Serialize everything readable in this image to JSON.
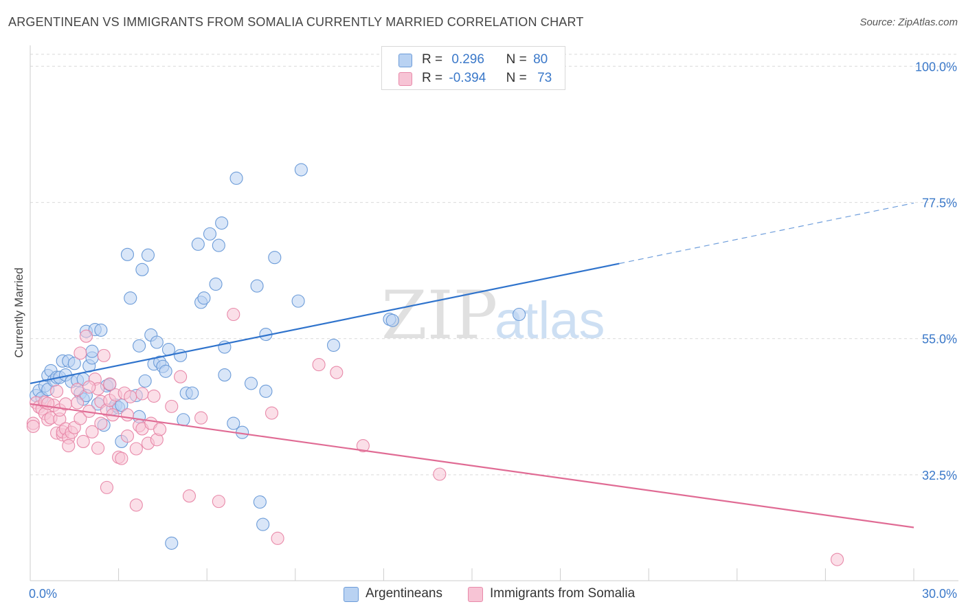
{
  "title": "ARGENTINEAN VS IMMIGRANTS FROM SOMALIA CURRENTLY MARRIED CORRELATION CHART",
  "source": "Source: ZipAtlas.com",
  "watermark": {
    "zip": "ZIP",
    "atlas": "atlas"
  },
  "legend_top": [
    {
      "r_label": "R =",
      "r_value": "0.296",
      "n_label": "N =",
      "n_value": "80"
    },
    {
      "r_label": "R =",
      "r_value": "-0.394",
      "n_label": "N =",
      "n_value": "73"
    }
  ],
  "legend_bottom": [
    "Argentineans",
    "Immigrants from Somalia"
  ],
  "colors": {
    "blue_fill": "#b9d2f2",
    "blue_stroke": "#6b9bd8",
    "blue_line": "#2f73cc",
    "pink_fill": "#f7c4d5",
    "pink_stroke": "#e889a9",
    "pink_line": "#e06b94",
    "axis_text": "#3a78c9",
    "grid": "#d9d9d9"
  },
  "chart_data": {
    "type": "scatter",
    "title": "ARGENTINEAN VS IMMIGRANTS FROM SOMALIA CURRENTLY MARRIED CORRELATION CHART",
    "xlabel": "",
    "ylabel": "Currently Married",
    "xlim": [
      0,
      30
    ],
    "ylim": [
      15,
      103
    ],
    "x_tick_labels": [
      "0.0%",
      "30.0%"
    ],
    "y_ticks": [
      {
        "value": 100,
        "label": "100.0%"
      },
      {
        "value": 77.5,
        "label": "77.5%"
      },
      {
        "value": 55,
        "label": "55.0%"
      },
      {
        "value": 32.5,
        "label": "32.5%"
      }
    ],
    "grid": true,
    "legend_placement": "top-center",
    "series": [
      {
        "name": "Argentineans",
        "r": 0.296,
        "n": 80,
        "trend": {
          "x0": 0,
          "y0": 47.6,
          "x1": 20,
          "y1": 67.4,
          "dashed_to_x": 30,
          "dashed_to_y": 77.4
        },
        "points": [
          [
            0.2,
            45.6
          ],
          [
            0.3,
            46.4
          ],
          [
            0.4,
            45.2
          ],
          [
            0.5,
            47.2
          ],
          [
            0.6,
            48.9
          ],
          [
            0.6,
            46.6
          ],
          [
            0.7,
            49.7
          ],
          [
            0.8,
            48.1
          ],
          [
            0.9,
            48.6
          ],
          [
            1.0,
            48.6
          ],
          [
            1.1,
            51.3
          ],
          [
            1.2,
            49.0
          ],
          [
            1.3,
            51.3
          ],
          [
            1.4,
            47.9
          ],
          [
            1.5,
            50.9
          ],
          [
            1.6,
            48.1
          ],
          [
            1.7,
            46.0
          ],
          [
            1.8,
            45.0
          ],
          [
            1.8,
            48.3
          ],
          [
            1.9,
            45.6
          ],
          [
            1.9,
            56.2
          ],
          [
            2.0,
            50.5
          ],
          [
            2.1,
            51.8
          ],
          [
            2.1,
            52.9
          ],
          [
            2.2,
            56.5
          ],
          [
            2.3,
            44.2
          ],
          [
            2.4,
            56.4
          ],
          [
            2.5,
            40.7
          ],
          [
            2.6,
            47.2
          ],
          [
            2.7,
            47.4
          ],
          [
            2.8,
            43.4
          ],
          [
            2.9,
            44.0
          ],
          [
            3.0,
            43.6
          ],
          [
            3.1,
            44.0
          ],
          [
            3.1,
            38.0
          ],
          [
            3.3,
            68.9
          ],
          [
            3.4,
            61.7
          ],
          [
            3.6,
            45.6
          ],
          [
            3.7,
            42.1
          ],
          [
            3.7,
            53.8
          ],
          [
            3.8,
            66.4
          ],
          [
            3.9,
            48.0
          ],
          [
            4.0,
            68.8
          ],
          [
            4.1,
            55.6
          ],
          [
            4.2,
            50.8
          ],
          [
            4.3,
            54.4
          ],
          [
            4.4,
            51.1
          ],
          [
            4.5,
            50.4
          ],
          [
            4.6,
            49.6
          ],
          [
            4.7,
            53.2
          ],
          [
            4.8,
            21.2
          ],
          [
            5.1,
            52.2
          ],
          [
            5.3,
            46.0
          ],
          [
            5.2,
            41.6
          ],
          [
            5.5,
            46.0
          ],
          [
            5.7,
            70.6
          ],
          [
            5.8,
            61.0
          ],
          [
            5.9,
            61.7
          ],
          [
            6.1,
            72.3
          ],
          [
            6.3,
            64.0
          ],
          [
            6.4,
            70.4
          ],
          [
            6.5,
            74.1
          ],
          [
            6.6,
            49.0
          ],
          [
            6.6,
            53.6
          ],
          [
            6.9,
            41.0
          ],
          [
            7.0,
            81.5
          ],
          [
            7.2,
            39.5
          ],
          [
            7.5,
            47.6
          ],
          [
            7.7,
            63.7
          ],
          [
            7.8,
            28.0
          ],
          [
            7.9,
            24.3
          ],
          [
            8.0,
            46.3
          ],
          [
            8.0,
            55.7
          ],
          [
            8.3,
            68.4
          ],
          [
            9.1,
            61.2
          ],
          [
            9.2,
            82.9
          ],
          [
            10.3,
            53.9
          ],
          [
            12.2,
            58.2
          ],
          [
            12.3,
            58.0
          ],
          [
            16.6,
            59.0
          ]
        ]
      },
      {
        "name": "Immigrants from Somalia",
        "r": -0.394,
        "n": 73,
        "trend": {
          "x0": 0,
          "y0": 44.2,
          "x1": 30,
          "y1": 23.8
        },
        "points": [
          [
            0.1,
            41.0
          ],
          [
            0.1,
            40.5
          ],
          [
            0.2,
            44.4
          ],
          [
            0.3,
            43.7
          ],
          [
            0.4,
            43.4
          ],
          [
            0.5,
            42.6
          ],
          [
            0.5,
            44.5
          ],
          [
            0.6,
            41.6
          ],
          [
            0.7,
            41.9
          ],
          [
            0.8,
            44.0
          ],
          [
            0.9,
            39.4
          ],
          [
            0.9,
            46.3
          ],
          [
            1.0,
            41.7
          ],
          [
            1.0,
            43.2
          ],
          [
            1.1,
            39.1
          ],
          [
            1.1,
            39.6
          ],
          [
            1.2,
            40.1
          ],
          [
            1.2,
            44.2
          ],
          [
            1.3,
            38.6
          ],
          [
            1.3,
            37.3
          ],
          [
            1.4,
            39.5
          ],
          [
            1.5,
            40.3
          ],
          [
            1.6,
            44.4
          ],
          [
            1.6,
            46.6
          ],
          [
            1.7,
            52.6
          ],
          [
            1.7,
            41.8
          ],
          [
            1.8,
            38.0
          ],
          [
            1.9,
            55.4
          ],
          [
            2.0,
            43.0
          ],
          [
            2.1,
            39.6
          ],
          [
            2.2,
            48.3
          ],
          [
            2.3,
            36.9
          ],
          [
            2.3,
            46.7
          ],
          [
            2.4,
            44.6
          ],
          [
            2.4,
            41.0
          ],
          [
            2.5,
            52.2
          ],
          [
            2.6,
            43.2
          ],
          [
            2.6,
            30.4
          ],
          [
            2.7,
            47.5
          ],
          [
            2.7,
            44.8
          ],
          [
            2.8,
            42.4
          ],
          [
            2.9,
            45.7
          ],
          [
            3.0,
            35.4
          ],
          [
            3.1,
            35.2
          ],
          [
            3.2,
            46.0
          ],
          [
            3.3,
            42.4
          ],
          [
            3.3,
            38.9
          ],
          [
            3.4,
            45.4
          ],
          [
            3.6,
            27.5
          ],
          [
            3.6,
            36.8
          ],
          [
            3.7,
            40.6
          ],
          [
            3.8,
            45.9
          ],
          [
            3.8,
            40.1
          ],
          [
            4.0,
            37.7
          ],
          [
            4.1,
            41.0
          ],
          [
            4.2,
            45.5
          ],
          [
            4.3,
            38.3
          ],
          [
            4.4,
            40.0
          ],
          [
            4.8,
            43.8
          ],
          [
            5.1,
            48.7
          ],
          [
            5.4,
            29.0
          ],
          [
            5.8,
            41.9
          ],
          [
            6.4,
            28.1
          ],
          [
            6.9,
            59.0
          ],
          [
            8.2,
            42.7
          ],
          [
            8.4,
            22.0
          ],
          [
            9.8,
            50.7
          ],
          [
            10.4,
            49.4
          ],
          [
            11.3,
            37.3
          ],
          [
            13.9,
            32.6
          ],
          [
            27.4,
            18.5
          ],
          [
            0.6,
            44.3
          ],
          [
            2.0,
            47.0
          ]
        ]
      }
    ]
  }
}
